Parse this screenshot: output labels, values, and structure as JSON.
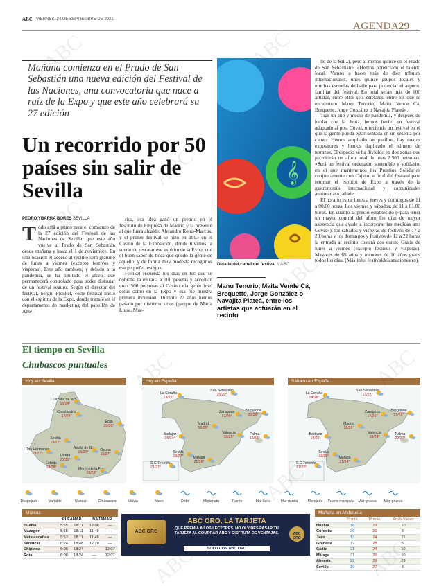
{
  "header": {
    "brand": "ABC",
    "date": "VIERNES, 24 DE SEPTIEMBRE DE 2021",
    "section": "AGENDA",
    "page": "29"
  },
  "watermark": "ABC",
  "article": {
    "intro": "Mañana comienza en el Prado de San Sebastián una nueva edición del Festival de las Naciones, una convocatoria que nace a raíz de la Expo y que este año celebrará su 27 edición",
    "headline": "Un recorrido por 50 países sin salir de Sevilla",
    "byline_author": "PEDRO YBARRA BORES",
    "byline_place": "SEVILLA",
    "col1": [
      "Todo está a punto para el comienzo de la 27 edición del Festival de las Naciones de Sevilla, que este año vuelve al Prado de San Sebastián desde mañana y hasta el 1 de noviembre. En esta ocasión el acceso al recinto será gratuito de lunes a viernes (excepto festivos y vísperas). Este año también, y debido a la pandemia, se ha limitado el aforo, que permanecerá controlado para poder disfrutar de un festival seguro. Según el director del festival, Sergio Frenkel, «este festival nació con el espíritu de la Expo, donde trabajé en el departamento de marketing del pabellón de Amé-"
    ],
    "col2": [
      "rica, esa idea ganó un premio en el Instituto de Empresa de Madrid y la presenté al que fuera alcalde, Alejandro Rojas-Marcos, y el primer festival se hizo en 1993 en el Casino de la Exposición, donde tuvimos la suerte de rescatar ese espíritu de la Expo, con el buen sabor de boca que quedó la gente de aquello, y de forma muy modesta recogimos ese pequeño testigo».",
      "Frenkel recuerda los días en los que se cobraba la entrada a 200 pesetas y accedían unas 500 personas al Casino «la gente hizo colas como en la Expo y esa fue nuestra primera incursión. Durante 27 años hemos pasado por distintos sitios (parque de María Luisa, Mue-"
    ],
    "col3": [
      "lle de la Sal...), pero al menos quince en el Prado de San Sebastián». «Hemos potenciado el talento local. Vamos a hacer más de diez tributos internacionales, unos quince grupos locales y muchas escuelas de baile para potenciar el aspecto familiar del festival. En total serán más de 100 artistas, entre ellos seis estelares, entre los que se encuentran Manu Tenorio, Maita Vende Cá, Brequette, Jorge González o Navajita Plateá».",
      "Tras un año y medio de pandemia, y después de hablar con la Junta, hemos hecho un festival adaptado al post Covid, ofreciendo un festival en el que la gente pueda estar sentada en un sesenta por ciento. Hemos ampliado los pasillos, hay menos expositores y hemos duplicado el número de terrazas. El espacio se ha dividido en dos zonas que permitirán un aforo total de unas 2.500 personas. «Será un festival ordenado, sostenible y solidario, en el que mantenemos los Premios Solidarios conjuntamente con Cajasol a final del festival para retomar el espíritu de Expo a través de la gastronomía internacional y comunidades autónomas», añade.",
      "El horario es de lunes a jueves y domingos de 11 a 00.00 horas. Los viernes y sábados, de 11 a 01.00 horas. En cuanto al precio establecido («para tener un mayor control del aforo los días de mayor asistencia que ayude a incorporar las medidas anti Covid»), los sábados y vísperas de festivos de 17 a 23 horas y los domingos y festivos de 12 a 22 horas la entrada al recinto costará dos euros. Gratis de lunes a viernes (excepto festivos y vísperas). Mayores de 65 años y menores de 10 años gratis todos los días. (Más info: festivaldelasnaciones.es)."
    ],
    "image_caption": "Detalle del cartel del festival",
    "image_credit": "// ABC",
    "pull_quote": "Manu Tenorio, Maita Vende Cá, Brequette, Jorge González o Navajita Plateá, entre los artistas que actuarán en el recinto"
  },
  "weather": {
    "section": "El tiempo en Sevilla",
    "headline": "Chubascos puntuales",
    "maps": [
      {
        "title": "Hoy en Sevilla",
        "cities": [
          {
            "name": "Cazalla de la S.",
            "temps": "15/24°"
          },
          {
            "name": "Constantina",
            "temps": "17/24°"
          },
          {
            "name": "Écija",
            "temps": "20/30°"
          },
          {
            "name": "Sevilla",
            "temps": "19/27°"
          },
          {
            "name": "Dos Hermanas",
            "temps": "19/27°"
          },
          {
            "name": "Alcalá de G.",
            "temps": "19/27°"
          },
          {
            "name": "Utrera",
            "temps": "20/30°"
          },
          {
            "name": "Osuna",
            "temps": "19/27°"
          },
          {
            "name": "Lebrija",
            "temps": "18/28°"
          },
          {
            "name": "Morón de la Fra.",
            "temps": "19/28°"
          }
        ]
      },
      {
        "title": "Hoy en España",
        "cities": [
          {
            "name": "La Coruña",
            "temps": "13/22°"
          },
          {
            "name": "San Sebastián",
            "temps": "15/20°"
          },
          {
            "name": "Barcelona",
            "temps": "20/26°"
          },
          {
            "name": "Zaragoza",
            "temps": "17/26°"
          },
          {
            "name": "Madrid",
            "temps": "16/25°"
          },
          {
            "name": "Badajoz",
            "temps": "15/24°"
          },
          {
            "name": "Valencia",
            "temps": "18/25°"
          },
          {
            "name": "Palma",
            "temps": "22/28°"
          },
          {
            "name": "Sevilla",
            "temps": "19/27°"
          },
          {
            "name": "Málaga",
            "temps": "21/26°"
          },
          {
            "name": "S.C.Tenerife",
            "temps": "21/27°"
          }
        ]
      },
      {
        "title": "Sábado en España",
        "cities": [
          {
            "name": "La Coruña",
            "temps": "14/18°"
          },
          {
            "name": "San Sebastián",
            "temps": "17/22°"
          },
          {
            "name": "Barcelona",
            "temps": "21/26°"
          },
          {
            "name": "Zaragoza",
            "temps": "17/26°"
          },
          {
            "name": "Madrid",
            "temps": "18/25°"
          },
          {
            "name": "Badajoz",
            "temps": "14/22°"
          },
          {
            "name": "Valencia",
            "temps": "18/24°"
          },
          {
            "name": "Palma",
            "temps": "22/27°"
          },
          {
            "name": "Sevilla",
            "temps": "18/29°"
          },
          {
            "name": "Málaga",
            "temps": "21/24°"
          },
          {
            "name": "S.C.Tenerife",
            "temps": "21/22°"
          }
        ]
      }
    ],
    "legend": [
      "Despejado",
      "Variable",
      "Nuboso",
      "Chubascos",
      "Lluvia",
      "Nieve",
      "Débil",
      "Moderado",
      "Fuerte",
      "Mar llana",
      "Mar rizada",
      "Marejada",
      "Fuerte marejada",
      "Mar gruesa",
      "Muy gruesa"
    ],
    "tides": {
      "title": "Mareas",
      "headers": [
        "PLEAMAR",
        "BAJAMAR"
      ],
      "rows": [
        [
          "Huelva",
          "5:55",
          "18:11",
          "12:08",
          "—"
        ],
        [
          "Mazagón",
          "5:55",
          "18:11",
          "11:48",
          "—"
        ],
        [
          "Matalascañas",
          "5:53",
          "18:11",
          "11:48",
          "—"
        ],
        [
          "Sanlúcar",
          "6:24",
          "18:48",
          "12:20",
          "—"
        ],
        [
          "Chipiona",
          "6:08",
          "18:24",
          "—",
          "12:07"
        ],
        [
          "Rota",
          "6:08",
          "18:24",
          "—",
          "12:07"
        ]
      ]
    },
    "andalucia": {
      "title": "Mañana en Andalucía",
      "headers": [
        "Tª mín.",
        "Tª máx.",
        "Km/h Viento"
      ],
      "rows": [
        [
          "Huelva",
          "18",
          "23",
          "10"
        ],
        [
          "Córdoba",
          "20",
          "30",
          "9"
        ],
        [
          "Jaén",
          "13",
          "24",
          "21"
        ],
        [
          "Granada",
          "17",
          "28",
          "9"
        ],
        [
          "Cádiz",
          "21",
          "24",
          "10"
        ],
        [
          "Málaga",
          "21",
          "26",
          "10"
        ],
        [
          "Almería",
          "22",
          "28",
          "29"
        ],
        [
          "Sevilla",
          "19",
          "27",
          "8"
        ]
      ]
    }
  },
  "ad": {
    "card": "ABC ORO",
    "title": "ABC ORO, LA TARJETA",
    "text": "QUE PREMIA A LOS LECTORES. NO OLVIDES PASAR TU TARJETA AL COMPRAR ABC Y DISFRUTA DE VENTAJAS.",
    "footer": "SOLO CON ABC ORO"
  }
}
